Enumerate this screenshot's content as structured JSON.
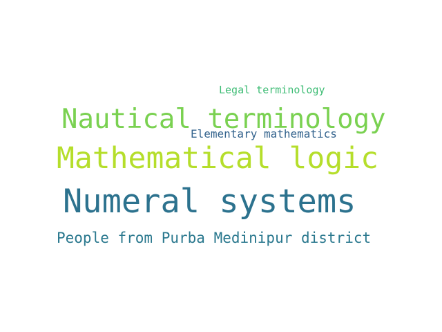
{
  "words": [
    {
      "text": "Legal terminology",
      "color": "#3dbc74"
    },
    {
      "text": "Nautical terminology",
      "color": "#7ad151"
    },
    {
      "text": "Elementary mathematics",
      "color": "#33638d"
    },
    {
      "text": "Mathematical logic",
      "color": "#b5de2b"
    },
    {
      "text": "Numeral systems",
      "color": "#2c728e"
    },
    {
      "text": "People from Purba Medinipur district",
      "color": "#2a788e"
    }
  ]
}
